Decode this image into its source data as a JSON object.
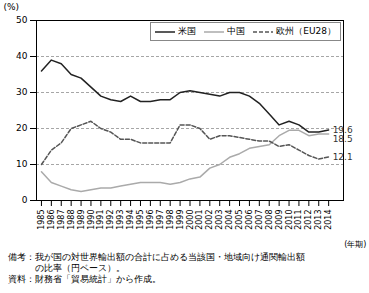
{
  "chart_data": {
    "type": "line",
    "ylabel": "(%)",
    "xlabel": "(年期)",
    "x": [
      1985,
      1986,
      1987,
      1988,
      1989,
      1990,
      1991,
      1992,
      1993,
      1994,
      1995,
      1996,
      1997,
      1998,
      1999,
      2000,
      2001,
      2002,
      2003,
      2004,
      2005,
      2006,
      2007,
      2008,
      2009,
      2010,
      2011,
      2012,
      2013,
      2014
    ],
    "series": [
      {
        "name": "米国",
        "color": "#222222",
        "line_style": "solid",
        "end_label": 19.6,
        "values": [
          36,
          39,
          38,
          35,
          34,
          31.5,
          29,
          28,
          27.5,
          29,
          27.5,
          27.5,
          28,
          28,
          30,
          30.5,
          30,
          29.5,
          29,
          30,
          30,
          29,
          27,
          24,
          21,
          22,
          21,
          19,
          19,
          19.6
        ]
      },
      {
        "name": "中国",
        "color": "#aaaaaa",
        "line_style": "solid",
        "end_label": 18.5,
        "values": [
          8,
          5,
          4,
          3,
          2.5,
          3,
          3.5,
          3.5,
          4,
          4.5,
          5,
          5,
          5,
          4.5,
          5,
          6,
          6.5,
          9,
          10,
          12,
          13,
          14.5,
          15,
          15.5,
          18,
          19.5,
          19.5,
          18,
          18.5,
          18.5
        ]
      },
      {
        "name": "欧州（EU28）",
        "color": "#555555",
        "line_style": "dashed",
        "end_label": 12.1,
        "values": [
          10,
          14,
          16,
          20,
          21,
          22,
          20,
          19,
          17,
          17,
          16,
          16,
          16,
          16,
          21,
          21,
          20,
          17,
          18,
          18,
          17.5,
          17,
          16.5,
          16.5,
          15,
          15.5,
          14,
          12.5,
          11.5,
          12.1
        ]
      }
    ],
    "xlim": [
      1984.5,
      2015.5
    ],
    "xticks": [
      1985,
      1986,
      1987,
      1988,
      1989,
      1990,
      1991,
      1992,
      1993,
      1994,
      1995,
      1996,
      1997,
      1998,
      1999,
      2000,
      2001,
      2002,
      2003,
      2004,
      2005,
      2006,
      2007,
      2008,
      2009,
      2010,
      2011,
      2012,
      2013,
      2014
    ],
    "ylim": [
      0,
      50
    ],
    "yticks": [
      0,
      10,
      20,
      30,
      40,
      50
    ],
    "grid": true,
    "legend": "upper right",
    "notes": [
      "備考：我が国の対世界輸出額の合計に占める当該国・地域向け通関輸出額",
      "　　　の比率（円ベース）。",
      "資料：財務省「貿易統計」から作成。"
    ]
  }
}
